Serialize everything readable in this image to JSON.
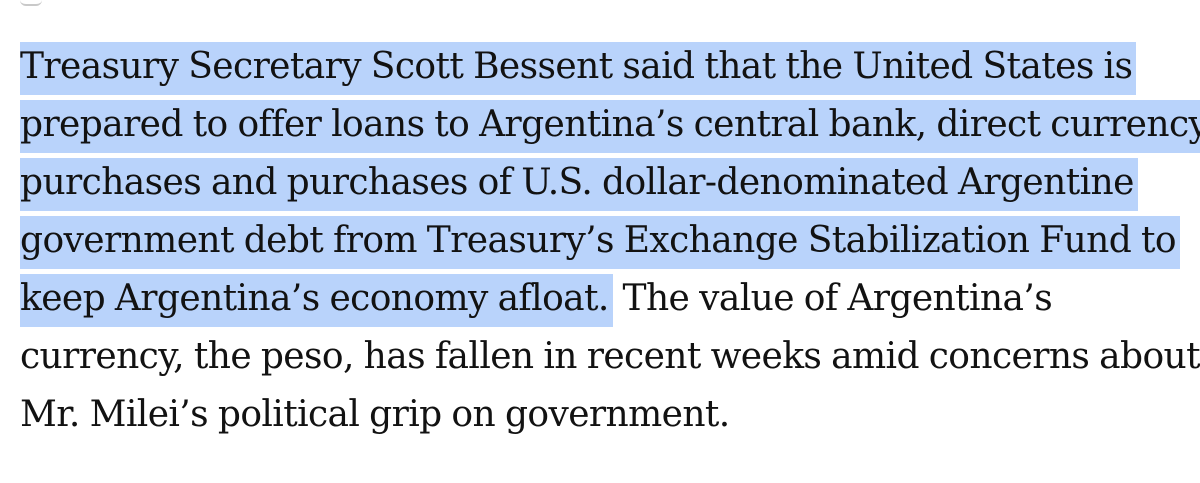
{
  "article": {
    "highlighted_lines": [
      "Treasury Secretary Scott Bessent said that the United States is",
      "prepared to offer loans to Argentina’s central bank, direct currency",
      "purchases and purchases of U.S. dollar-denominated Argentine",
      "government debt from Treasury’s Exchange Stabilization Fund to",
      "keep Argentina’s economy afloat."
    ],
    "rest_first": " The value of Argentina’s",
    "rest_lines": [
      "currency, the peso, has fallen in recent weeks amid concerns about",
      "Mr. Milei’s political grip on government."
    ]
  },
  "selection": {
    "highlight_color": "#b9d3fb",
    "text_color": "#121212"
  }
}
